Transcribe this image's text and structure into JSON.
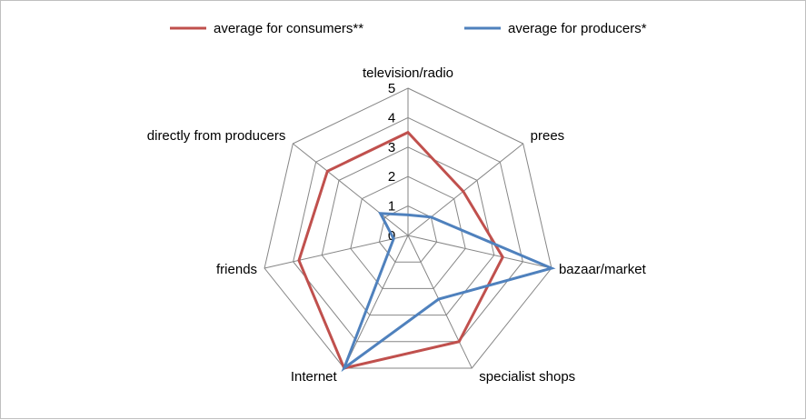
{
  "chart_data": {
    "type": "radar",
    "categories": [
      "television/radio",
      "prees",
      "bazaar/market",
      "specialist shops",
      "Internet",
      "friends",
      "directly from producers"
    ],
    "series": [
      {
        "name": "average for consumers**",
        "color": "#c0504d",
        "values": [
          3.5,
          2.4,
          3.3,
          4.0,
          5.0,
          3.8,
          3.5
        ]
      },
      {
        "name": "average for producers*",
        "color": "#4f81bd",
        "values": [
          0.7,
          1.0,
          5.0,
          2.4,
          5.0,
          0.5,
          1.2
        ]
      }
    ],
    "rlim": [
      0,
      5
    ],
    "ticks": [
      "0",
      "1",
      "2",
      "3",
      "4",
      "5"
    ],
    "grid": true,
    "legend_position": "top"
  }
}
